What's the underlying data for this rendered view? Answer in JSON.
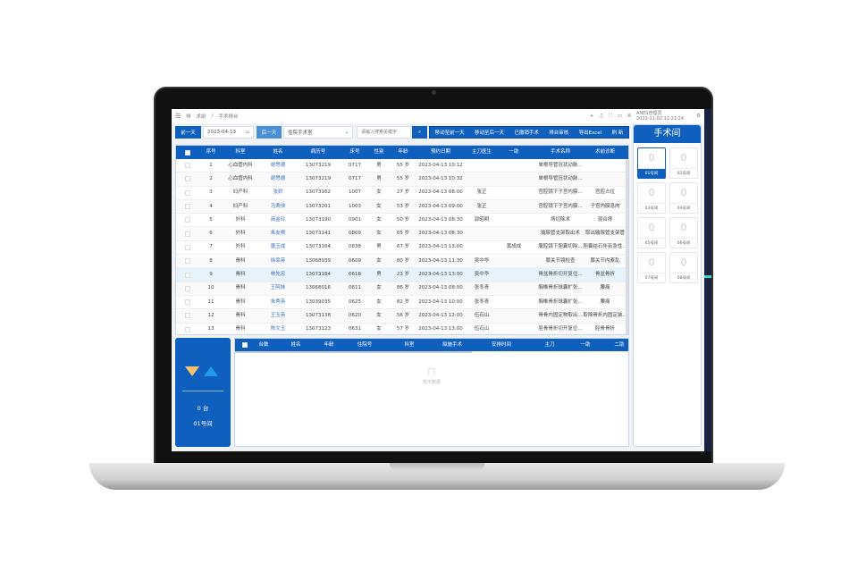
{
  "topbar": {
    "breadcrumb_root": "术前",
    "breadcrumb_sep": "/",
    "breadcrumb_current": "手术排台",
    "user": "ANES管理员",
    "datetime": "2023-11-02 11:21:24",
    "icons": [
      "menu-icon",
      "volume-icon",
      "bell-icon",
      "fullscreen-icon",
      "lock-icon",
      "user-icon",
      "settings-icon"
    ]
  },
  "toolbar": {
    "prev_day": "前一天",
    "date": "2023-04-13",
    "next_day": "后一天",
    "ward": "住院手术室",
    "search_placeholder": "请输入搜索关键字",
    "actions": [
      "移动至前一天",
      "移动至后一天",
      "已撤销手术",
      "排台审核",
      "导出Excel",
      "刷 新"
    ]
  },
  "table": {
    "headers": [
      "序号",
      "科室",
      "姓名",
      "病历号",
      "床号",
      "性别",
      "年龄",
      "预约日期",
      "主刀医生",
      "一助",
      "手术名称",
      "术前诊断"
    ],
    "rows": [
      [
        "1",
        "心血管内科",
        "谢思德",
        "13073219",
        "0717",
        "男",
        "55 岁",
        "2023-04-13 10:12",
        "",
        "",
        "单根导管冠状动脉...",
        ""
      ],
      [
        "2",
        "心血管内科",
        "谢思德",
        "13073219",
        "0717",
        "男",
        "55 岁",
        "2023-04-13 10:32",
        "",
        "",
        "单根导管冠状动脉...",
        ""
      ],
      [
        "3",
        "妇产科",
        "张娇",
        "13073162",
        "1007",
        "女",
        "27 岁",
        "2023-04-13 08:00",
        "张正",
        "",
        "宫腔镜下子宫内膜...",
        "宫腔占位"
      ],
      [
        "4",
        "妇产科",
        "马秀侠",
        "13073201",
        "1003",
        "女",
        "53 岁",
        "2023-04-13 09:00",
        "张正",
        "",
        "宫腔镜下子宫内膜...",
        "子宫内膜息肉"
      ],
      [
        "5",
        "外科",
        "商金玲",
        "13073190",
        "0901",
        "女",
        "50 岁",
        "2023-04-13 08:30",
        "郭昭明",
        "",
        "痔切除术",
        "混合痔"
      ],
      [
        "6",
        "外科",
        "朱友根",
        "13073141",
        "0809",
        "女",
        "65 岁",
        "2023-04-13 08:30",
        "",
        "",
        "输尿管支架取出术",
        "取出输尿管支架管"
      ],
      [
        "7",
        "外科",
        "唐玉成",
        "13073164",
        "0838",
        "男",
        "67 岁",
        "2023-04-13 13:00",
        "",
        "黄成成",
        "腹腔镜下胆囊切除...",
        "胆囊结石伴有急性..."
      ],
      [
        "8",
        "骨科",
        "徐幸英",
        "13068939",
        "0609",
        "女",
        "80 岁",
        "2023-04-13 11:30",
        "吴中华",
        "",
        "膝关节镜检查",
        "膝关节内紊乱"
      ],
      [
        "9",
        "骨科",
        "林先忠",
        "13073184",
        "0618",
        "男",
        "23 岁",
        "2023-04-13 13:00",
        "吴中华",
        "",
        "骨盆骨折切开复位...",
        "骨盆骨折"
      ],
      [
        "10",
        "骨科",
        "王阿妹",
        "13068016",
        "0611",
        "女",
        "86 岁",
        "2023-04-13 08:00",
        "张冬青",
        "",
        "胸椎骨折球囊扩张...",
        "腰痛"
      ],
      [
        "11",
        "骨科",
        "朱秀英",
        "13039035",
        "0625",
        "女",
        "82 岁",
        "2023-04-13 10:00",
        "张冬青",
        "",
        "胸椎骨折球囊扩张...",
        "腰痛"
      ],
      [
        "12",
        "骨科",
        "王玉英",
        "13073138",
        "0620",
        "女",
        "56 岁",
        "2023-04-13 12:00",
        "伍石山",
        "",
        "骨骨内固定物取出...",
        "取除骨折内固定装..."
      ],
      [
        "13",
        "骨科",
        "陈文玉",
        "13073123",
        "0631",
        "女",
        "57 岁",
        "2023-04-13 13:00",
        "伍石山",
        "",
        "胫骨骨折切开复位...",
        "胫骨骨折"
      ]
    ],
    "selected_row": 9
  },
  "summary": {
    "count": "0 台",
    "room": "01号间"
  },
  "schedule_table": {
    "headers": [
      "台数",
      "姓名",
      "年龄",
      "住院号",
      "科室",
      "拟施手术",
      "安排时间",
      "主刀",
      "一助",
      "二助"
    ],
    "empty_text": "暂无数据"
  },
  "rooms": {
    "title": "手术间",
    "items": [
      {
        "count": "0",
        "label": "01号间",
        "selected": true
      },
      {
        "count": "0",
        "label": "02号间"
      },
      {
        "count": "0",
        "label": "03号间"
      },
      {
        "count": "0",
        "label": "04号间"
      },
      {
        "count": "0",
        "label": "05号间"
      },
      {
        "count": "0",
        "label": "06号间"
      },
      {
        "count": "0",
        "label": "07号间"
      },
      {
        "count": "0",
        "label": "08号间"
      }
    ]
  },
  "colors": {
    "primary": "#0f5fbf",
    "selected_row": "#e6f3fb",
    "arrow_down": "#f5c26b",
    "arrow_up": "#1e9be8"
  }
}
